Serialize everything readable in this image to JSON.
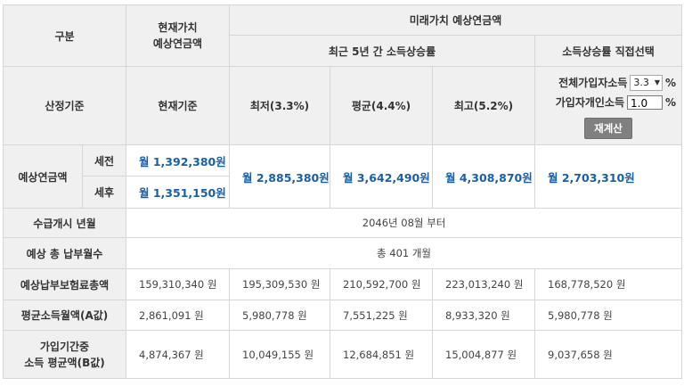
{
  "header": {
    "category": "구분",
    "present_value": [
      "현재가치",
      "예상연금액"
    ],
    "future_value": "미래가치 예상연금액",
    "recent_5yr": "최근 5년 간 소득상승률",
    "direct_select": "소득상승률 직접선택"
  },
  "basis_row": {
    "label": "산정기준",
    "present": "현재기준",
    "low": "최저(3.3%)",
    "avg": "평균(4.4%)",
    "high": "최고(5.2%)",
    "all_income_label": "전체가입자소득",
    "all_income_value": "3.3",
    "personal_income_label": "가입자개인소득",
    "personal_income_value": "1.0",
    "pct_symbol": "%",
    "recalc_button": "재계산"
  },
  "pension": {
    "label": "예상연금액",
    "pretax_label": "세전",
    "posttax_label": "세후",
    "present_pretax": "월 1,392,380원",
    "present_posttax": "월 1,351,150원",
    "low": "월 2,885,380원",
    "avg": "월 3,642,490원",
    "high": "월 4,308,870원",
    "direct": "월 2,703,310원"
  },
  "start_row": {
    "label": "수급개시 년월",
    "value": "2046년 08월 부터"
  },
  "months_row": {
    "label": "예상 총 납부월수",
    "value": "총 401 개월"
  },
  "total_premium": {
    "label": "예상납부보험료총액",
    "values": [
      "159,310,340 원",
      "195,309,530 원",
      "210,592,700 원",
      "223,013,240 원",
      "168,778,520 원"
    ]
  },
  "avg_income": {
    "label": "평균소득월액(A값)",
    "values": [
      "2,861,091 원",
      "5,980,778 원",
      "7,551,225 원",
      "8,933,320 원",
      "5,980,778 원"
    ]
  },
  "b_value": {
    "label_lines": [
      "가입기간중",
      "소득 평균액(B값)"
    ],
    "values": [
      "4,874,367 원",
      "10,049,155 원",
      "12,684,851 원",
      "15,004,877 원",
      "9,037,658 원"
    ]
  }
}
